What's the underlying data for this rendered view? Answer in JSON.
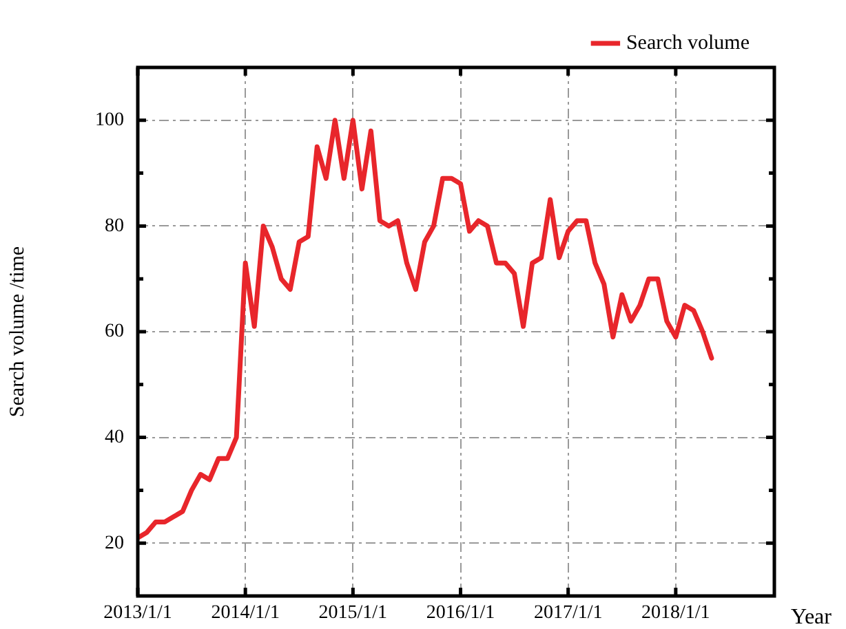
{
  "chart_data": {
    "type": "line",
    "xlabel": "Year",
    "ylabel": "Search volume /time",
    "x": [
      "2013-01",
      "2013-02",
      "2013-03",
      "2013-04",
      "2013-05",
      "2013-06",
      "2013-07",
      "2013-08",
      "2013-09",
      "2013-10",
      "2013-11",
      "2013-12",
      "2014-01",
      "2014-02",
      "2014-03",
      "2014-04",
      "2014-05",
      "2014-06",
      "2014-07",
      "2014-08",
      "2014-09",
      "2014-10",
      "2014-11",
      "2014-12",
      "2015-01",
      "2015-02",
      "2015-03",
      "2015-04",
      "2015-05",
      "2015-06",
      "2015-07",
      "2015-08",
      "2015-09",
      "2015-10",
      "2015-11",
      "2015-12",
      "2016-01",
      "2016-02",
      "2016-03",
      "2016-04",
      "2016-05",
      "2016-06",
      "2016-07",
      "2016-08",
      "2016-09",
      "2016-10",
      "2016-11",
      "2016-12",
      "2017-01",
      "2017-02",
      "2017-03",
      "2017-04",
      "2017-05",
      "2017-06",
      "2017-07",
      "2017-08",
      "2017-09",
      "2017-10",
      "2017-11",
      "2017-12",
      "2018-01",
      "2018-02",
      "2018-03",
      "2018-04",
      "2018-05"
    ],
    "series": [
      {
        "name": "Search volume",
        "color": "#e8262b",
        "values": [
          21,
          22,
          24,
          24,
          25,
          26,
          30,
          33,
          32,
          36,
          36,
          40,
          73,
          61,
          80,
          76,
          70,
          68,
          77,
          78,
          95,
          89,
          100,
          89,
          100,
          87,
          98,
          81,
          80,
          81,
          73,
          68,
          77,
          80,
          89,
          89,
          88,
          79,
          81,
          80,
          73,
          73,
          71,
          61,
          73,
          74,
          85,
          74,
          79,
          81,
          81,
          73,
          69,
          59,
          67,
          62,
          65,
          70,
          70,
          62,
          59,
          65,
          64,
          60,
          55
        ]
      }
    ],
    "xlim": [
      "2013-01-01",
      "2018-12-01"
    ],
    "xticks": [
      {
        "value": "2013-01-01",
        "label": "2013/1/1"
      },
      {
        "value": "2014-01-01",
        "label": "2014/1/1"
      },
      {
        "value": "2015-01-01",
        "label": "2015/1/1"
      },
      {
        "value": "2016-01-01",
        "label": "2016/1/1"
      },
      {
        "value": "2017-01-01",
        "label": "2017/1/1"
      },
      {
        "value": "2018-01-01",
        "label": "2018/1/1"
      }
    ],
    "ylim": [
      10,
      110
    ],
    "yticks": [
      20,
      {
        "value": 30,
        "label": null
      },
      40,
      {
        "value": 50,
        "label": null
      },
      60,
      {
        "value": 70,
        "label": null
      },
      80,
      {
        "value": 90,
        "label": null
      },
      100
    ],
    "grid": true,
    "legend": "top right",
    "marker": "none",
    "line_style": "solid"
  }
}
